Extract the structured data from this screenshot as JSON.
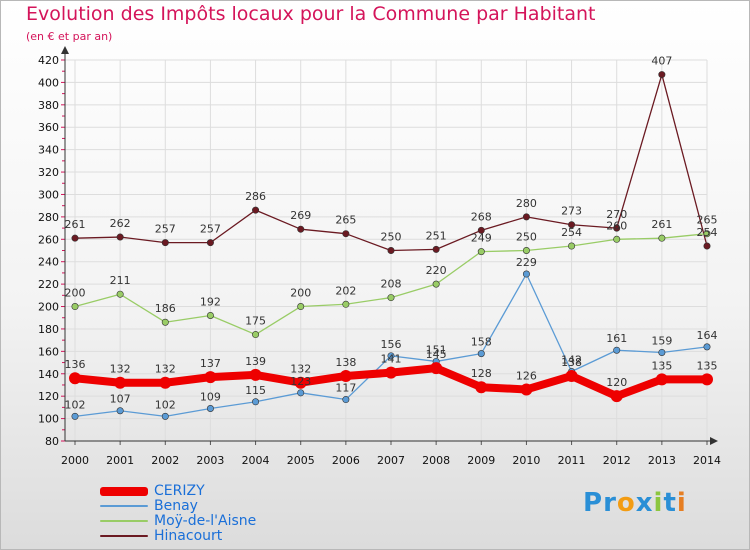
{
  "header": {
    "title": "Evolution des Impôts locaux pour la Commune par Habitant",
    "subtitle": "(en € et par an)"
  },
  "chart_data": {
    "type": "line",
    "title": "Evolution des Impôts locaux pour la Commune par Habitant",
    "subtitle": "(en € et par an)",
    "xlabel": "",
    "ylabel": "",
    "x": [
      "2000",
      "2001",
      "2002",
      "2003",
      "2004",
      "2005",
      "2006",
      "2007",
      "2008",
      "2009",
      "2010",
      "2011",
      "2012",
      "2013",
      "2014"
    ],
    "ylim": [
      80,
      420
    ],
    "yticks": [
      80,
      100,
      120,
      140,
      160,
      180,
      200,
      220,
      240,
      260,
      280,
      300,
      320,
      340,
      360,
      380,
      400,
      420
    ],
    "grid": true,
    "series": [
      {
        "name": "Hinacourt",
        "color": "#6b1a22",
        "values": [
          261,
          262,
          257,
          257,
          286,
          269,
          265,
          250,
          251,
          268,
          280,
          273,
          270,
          407,
          254
        ]
      },
      {
        "name": "Moÿ-de-l'Aisne",
        "color": "#99cc66",
        "values": [
          200,
          211,
          186,
          192,
          175,
          200,
          202,
          208,
          220,
          249,
          250,
          254,
          260,
          261,
          265
        ]
      },
      {
        "name": "Benay",
        "color": "#5b9bd5",
        "values": [
          102,
          107,
          102,
          109,
          115,
          123,
          117,
          156,
          151,
          158,
          229,
          142,
          161,
          159,
          164
        ]
      },
      {
        "name": "CERIZY",
        "color": "#ee0000",
        "values": [
          136,
          132,
          132,
          137,
          139,
          132,
          138,
          141,
          145,
          128,
          126,
          138,
          120,
          135,
          135
        ]
      }
    ],
    "legend": [
      "CERIZY",
      "Benay",
      "Moÿ-de-l'Aisne",
      "Hinacourt"
    ],
    "legend_position": "bottom-left"
  },
  "logo": {
    "letters": [
      "P",
      "r",
      "o",
      "x",
      "i",
      "t",
      "i"
    ],
    "colors": [
      "#2a8fd6",
      "#2a8fd6",
      "#f39c12",
      "#2a8fd6",
      "#8cc63f",
      "#2a8fd6",
      "#e67e22"
    ]
  }
}
